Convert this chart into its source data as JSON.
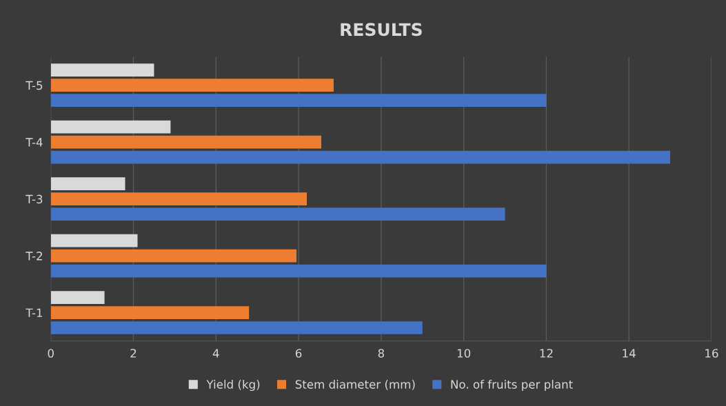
{
  "chart_data": {
    "type": "bar",
    "orientation": "horizontal",
    "title": "RESULTS",
    "categories": [
      "T-5",
      "T-4",
      "T-3",
      "T-2",
      "T-1"
    ],
    "series": [
      {
        "name": "Yield (kg)",
        "color": "#d9d9d9",
        "values": [
          2.5,
          2.9,
          1.8,
          2.1,
          1.3
        ]
      },
      {
        "name": "Stem diameter (mm)",
        "color": "#ed7d31",
        "values": [
          6.85,
          6.55,
          6.2,
          5.95,
          4.8
        ]
      },
      {
        "name": "No. of fruits per plant",
        "color": "#4472c4",
        "values": [
          12,
          15,
          11,
          12,
          9
        ]
      }
    ],
    "xlim": [
      0,
      16
    ],
    "xticks": [
      0,
      2,
      4,
      6,
      8,
      10,
      12,
      14,
      16
    ],
    "grid": "x",
    "legend": "bottom"
  }
}
